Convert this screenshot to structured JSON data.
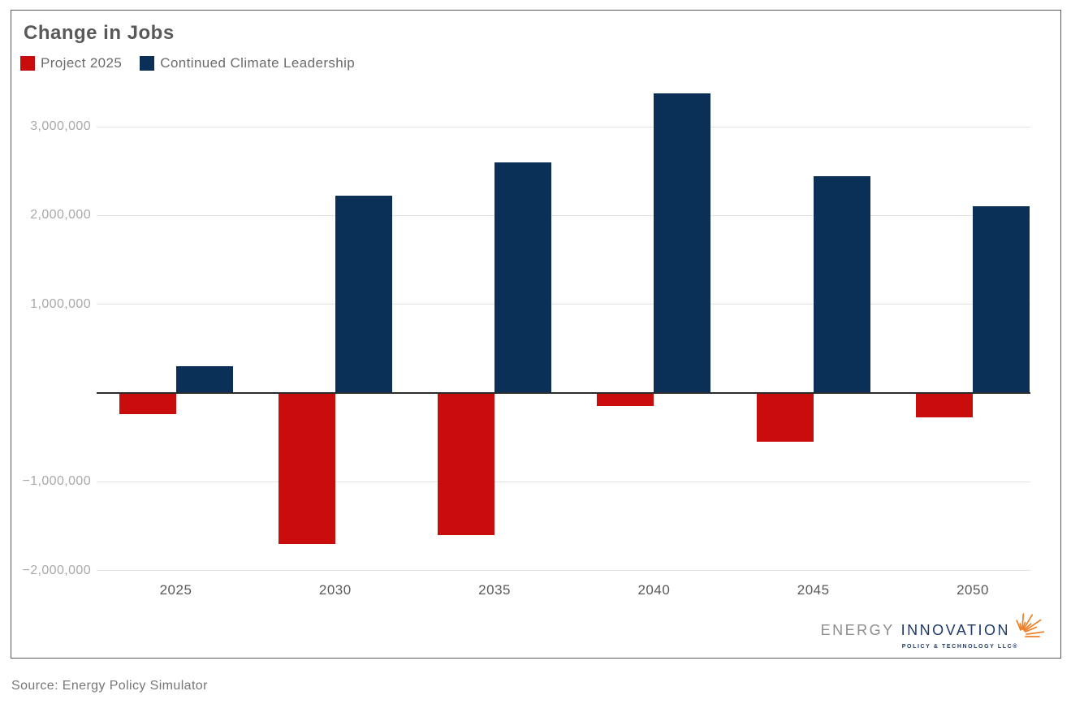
{
  "card": {
    "title": "Change in Jobs",
    "source_note": "Source: Energy Policy Simulator"
  },
  "legend": [
    {
      "label": "Project 2025",
      "color": "#c90c0c"
    },
    {
      "label": "Continued Climate Leadership",
      "color": "#0a3057"
    }
  ],
  "chart_data": {
    "type": "bar",
    "title": "Change in Jobs",
    "categories": [
      "2025",
      "2030",
      "2035",
      "2040",
      "2045",
      "2050"
    ],
    "series": [
      {
        "name": "Project 2025",
        "color": "#c90c0c",
        "values": [
          -240000,
          -1700000,
          -1600000,
          -150000,
          -550000,
          -270000
        ]
      },
      {
        "name": "Continued Climate Leadership",
        "color": "#0a3057",
        "values": [
          300000,
          2220000,
          2600000,
          3380000,
          2440000,
          2100000
        ]
      }
    ],
    "ylabel": "",
    "xlabel": "",
    "ylim": [
      -2300000,
      3420000
    ],
    "yticks": [
      {
        "value": 3000000,
        "label": "3,000,000"
      },
      {
        "value": 2000000,
        "label": "2,000,000"
      },
      {
        "value": 1000000,
        "label": "1,000,000"
      },
      {
        "value": -1000000,
        "label": "−1,000,000"
      },
      {
        "value": -2000000,
        "label": "−2,000,000"
      }
    ],
    "grid": true,
    "zero_line": true,
    "legend_position": "top-left"
  },
  "logo": {
    "name_part1": "ENERGY",
    "name_part2": "INNOVATION",
    "tagline": "POLICY & TECHNOLOGY LLC®",
    "accent_color": "#f07e26"
  }
}
